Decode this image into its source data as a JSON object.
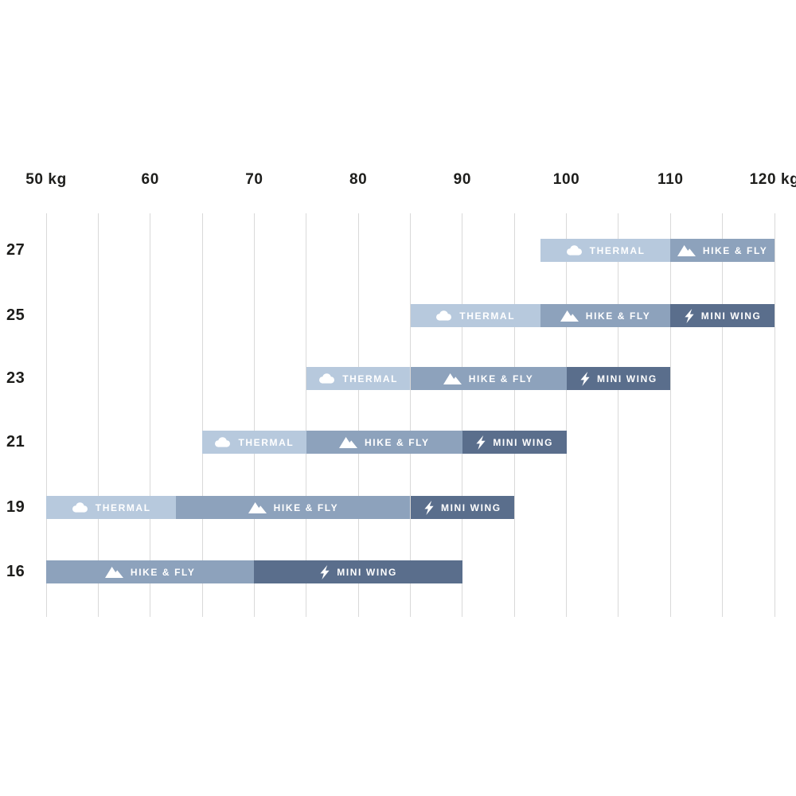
{
  "chart_data": {
    "type": "bar",
    "subtype": "horizontal-range-bars",
    "title": "",
    "x_axis": {
      "unit": "kg",
      "min": 50,
      "max": 120,
      "tick_values": [
        50,
        60,
        70,
        80,
        90,
        100,
        110,
        120
      ],
      "tick_labels": [
        "50 kg",
        "60",
        "70",
        "80",
        "90",
        "100",
        "110",
        "120 kg"
      ],
      "gridline_step_kg": 5,
      "grid_on": true,
      "axis_position": "top"
    },
    "y_axis": {
      "categories": [
        "27",
        "25",
        "23",
        "21",
        "19",
        "16"
      ]
    },
    "series_types": [
      {
        "id": "thermal",
        "label": "THERMAL",
        "icon": "cloud-icon",
        "color": "#b7c9dd"
      },
      {
        "id": "hike_fly",
        "label": "HIKE & FLY",
        "icon": "mountain-icon",
        "color": "#8da2bc"
      },
      {
        "id": "mini_wing",
        "label": "MINI WING",
        "icon": "lightning-icon",
        "color": "#5a6e8c"
      }
    ],
    "rows": [
      {
        "size": "27",
        "segments": [
          {
            "type": "thermal",
            "from_kg": 97.5,
            "to_kg": 110
          },
          {
            "type": "hike_fly",
            "from_kg": 110,
            "to_kg": 120
          }
        ]
      },
      {
        "size": "25",
        "segments": [
          {
            "type": "thermal",
            "from_kg": 85,
            "to_kg": 97.5
          },
          {
            "type": "hike_fly",
            "from_kg": 97.5,
            "to_kg": 110
          },
          {
            "type": "mini_wing",
            "from_kg": 110,
            "to_kg": 120
          }
        ]
      },
      {
        "size": "23",
        "segments": [
          {
            "type": "thermal",
            "from_kg": 75,
            "to_kg": 85
          },
          {
            "type": "hike_fly",
            "from_kg": 85,
            "to_kg": 100
          },
          {
            "type": "mini_wing",
            "from_kg": 100,
            "to_kg": 110
          }
        ]
      },
      {
        "size": "21",
        "segments": [
          {
            "type": "thermal",
            "from_kg": 65,
            "to_kg": 75
          },
          {
            "type": "hike_fly",
            "from_kg": 75,
            "to_kg": 90
          },
          {
            "type": "mini_wing",
            "from_kg": 90,
            "to_kg": 100
          }
        ]
      },
      {
        "size": "19",
        "segments": [
          {
            "type": "thermal",
            "from_kg": 50,
            "to_kg": 62.5
          },
          {
            "type": "hike_fly",
            "from_kg": 62.5,
            "to_kg": 85
          },
          {
            "type": "mini_wing",
            "from_kg": 85,
            "to_kg": 95
          }
        ]
      },
      {
        "size": "16",
        "segments": [
          {
            "type": "hike_fly",
            "from_kg": 50,
            "to_kg": 70
          },
          {
            "type": "mini_wing",
            "from_kg": 70,
            "to_kg": 90
          }
        ]
      }
    ],
    "colors": {
      "background": "#ffffff",
      "gridline": "#d9d9d9",
      "axis_text": "#1d1d1b",
      "bar_text": "#ffffff"
    }
  }
}
